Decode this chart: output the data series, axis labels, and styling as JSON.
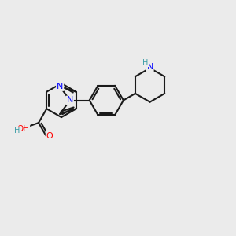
{
  "background_color": "#ebebeb",
  "bond_color": "#1a1a1a",
  "bond_width": 1.5,
  "N_color": "#0000ff",
  "O_color": "#ff0000",
  "NH_color": "#3d9da6",
  "H_color": "#3d9da6",
  "el": 0.72,
  "fig_width": 3.0,
  "fig_height": 3.0,
  "dpi": 100,
  "xlim": [
    0,
    10
  ],
  "ylim": [
    0,
    10
  ]
}
